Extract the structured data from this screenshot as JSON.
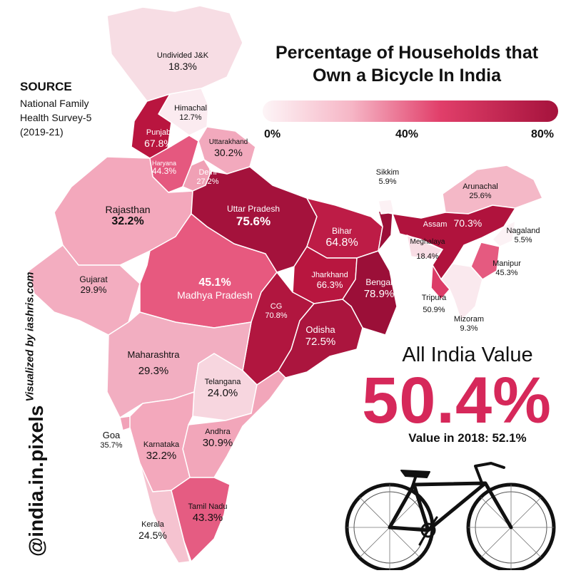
{
  "title": {
    "line1": "Percentage of Households that",
    "line2": "Own a Bicycle In India"
  },
  "source": {
    "heading": "SOURCE",
    "line1": "National Family",
    "line2": "Health Survey-5",
    "line3": "(2019-21)"
  },
  "legend": {
    "min": "0%",
    "mid": "40%",
    "max": "80%",
    "scale_colors": [
      "#fdf5f7",
      "#f6b6c6",
      "#e13f6a",
      "#a5123c"
    ]
  },
  "summary": {
    "heading": "All India Value",
    "value": "50.4%",
    "sub": "Value in 2018: 52.1%"
  },
  "credit": {
    "visualized": "Visualized by iashris.com",
    "handle": "@india.in.pixels"
  },
  "states": [
    {
      "id": "jk",
      "name": "Undivided J&K",
      "value": "18.3%",
      "pct": 18.3,
      "color": "#f7dde4"
    },
    {
      "id": "himachal",
      "name": "Himachal",
      "value": "12.7%",
      "pct": 12.7,
      "color": "#fbebf0"
    },
    {
      "id": "punjab",
      "name": "Punjab",
      "value": "67.8%",
      "pct": 67.8,
      "color": "#b9153f"
    },
    {
      "id": "uttarakhand",
      "name": "Uttarakhand",
      "value": "30.2%",
      "pct": 30.2,
      "color": "#f2a9bd"
    },
    {
      "id": "haryana",
      "name": "Haryana",
      "value": "44.3%",
      "pct": 44.3,
      "color": "#e5587f"
    },
    {
      "id": "delhi",
      "name": "Delhi",
      "value": "27.2%",
      "pct": 27.2,
      "color": "#f0a0b5"
    },
    {
      "id": "rajasthan",
      "name": "Rajasthan",
      "value": "32.2%",
      "pct": 32.2,
      "color": "#f3a8bc"
    },
    {
      "id": "up",
      "name": "Uttar Pradesh",
      "value": "75.6%",
      "pct": 75.6,
      "color": "#a4123c"
    },
    {
      "id": "bihar",
      "name": "Bihar",
      "value": "64.8%",
      "pct": 64.8,
      "color": "#bd1c46"
    },
    {
      "id": "gujarat",
      "name": "Gujarat",
      "value": "29.9%",
      "pct": 29.9,
      "color": "#f3adc0"
    },
    {
      "id": "mp",
      "name": "Madhya Pradesh",
      "value": "45.1%",
      "pct": 45.1,
      "color": "#e7597f"
    },
    {
      "id": "jharkhand",
      "name": "Jharkhand",
      "value": "66.3%",
      "pct": 66.3,
      "color": "#b8163f"
    },
    {
      "id": "bengal",
      "name": "Bengal",
      "value": "78.9%",
      "pct": 78.9,
      "color": "#9b0f38"
    },
    {
      "id": "cg",
      "name": "CG",
      "value": "70.8%",
      "pct": 70.8,
      "color": "#b1163f"
    },
    {
      "id": "odisha",
      "name": "Odisha",
      "value": "72.5%",
      "pct": 72.5,
      "color": "#ab153e"
    },
    {
      "id": "maharashtra",
      "name": "Maharashtra",
      "value": "29.3%",
      "pct": 29.3,
      "color": "#f2aec1"
    },
    {
      "id": "telangana",
      "name": "Telangana",
      "value": "24.0%",
      "pct": 24.0,
      "color": "#f7d6df"
    },
    {
      "id": "goa",
      "name": "Goa",
      "value": "35.7%",
      "pct": 35.7,
      "color": "#f1a2b8"
    },
    {
      "id": "andhra",
      "name": "Andhra",
      "value": "30.9%",
      "pct": 30.9,
      "color": "#f2a6ba"
    },
    {
      "id": "karnataka",
      "name": "Karnataka",
      "value": "32.2%",
      "pct": 32.2,
      "color": "#f3a8bc"
    },
    {
      "id": "tamilnadu",
      "name": "Tamil Nadu",
      "value": "43.3%",
      "pct": 43.3,
      "color": "#e55c82"
    },
    {
      "id": "kerala",
      "name": "Kerala",
      "value": "24.5%",
      "pct": 24.5,
      "color": "#f5c3d0"
    },
    {
      "id": "sikkim",
      "name": "Sikkim",
      "value": "5.9%",
      "pct": 5.9,
      "color": "#fcf1f4"
    },
    {
      "id": "arunachal",
      "name": "Arunachal",
      "value": "25.6%",
      "pct": 25.6,
      "color": "#f4b8c7"
    },
    {
      "id": "assam",
      "name": "Assam",
      "value": "70.3%",
      "pct": 70.3,
      "color": "#b0133d"
    },
    {
      "id": "nagaland",
      "name": "Nagaland",
      "value": "5.5%",
      "pct": 5.5,
      "color": "#fcf2f5"
    },
    {
      "id": "meghalaya",
      "name": "Meghalaya",
      "value": "18.4%",
      "pct": 18.4,
      "color": "#f8dde5"
    },
    {
      "id": "manipur",
      "name": "Manipur",
      "value": "45.3%",
      "pct": 45.3,
      "color": "#e55a80"
    },
    {
      "id": "tripura",
      "name": "Tripura",
      "value": "50.9%",
      "pct": 50.9,
      "color": "#dc3c67"
    },
    {
      "id": "mizoram",
      "name": "Mizoram",
      "value": "9.3%",
      "pct": 9.3,
      "color": "#fae9ee"
    }
  ]
}
